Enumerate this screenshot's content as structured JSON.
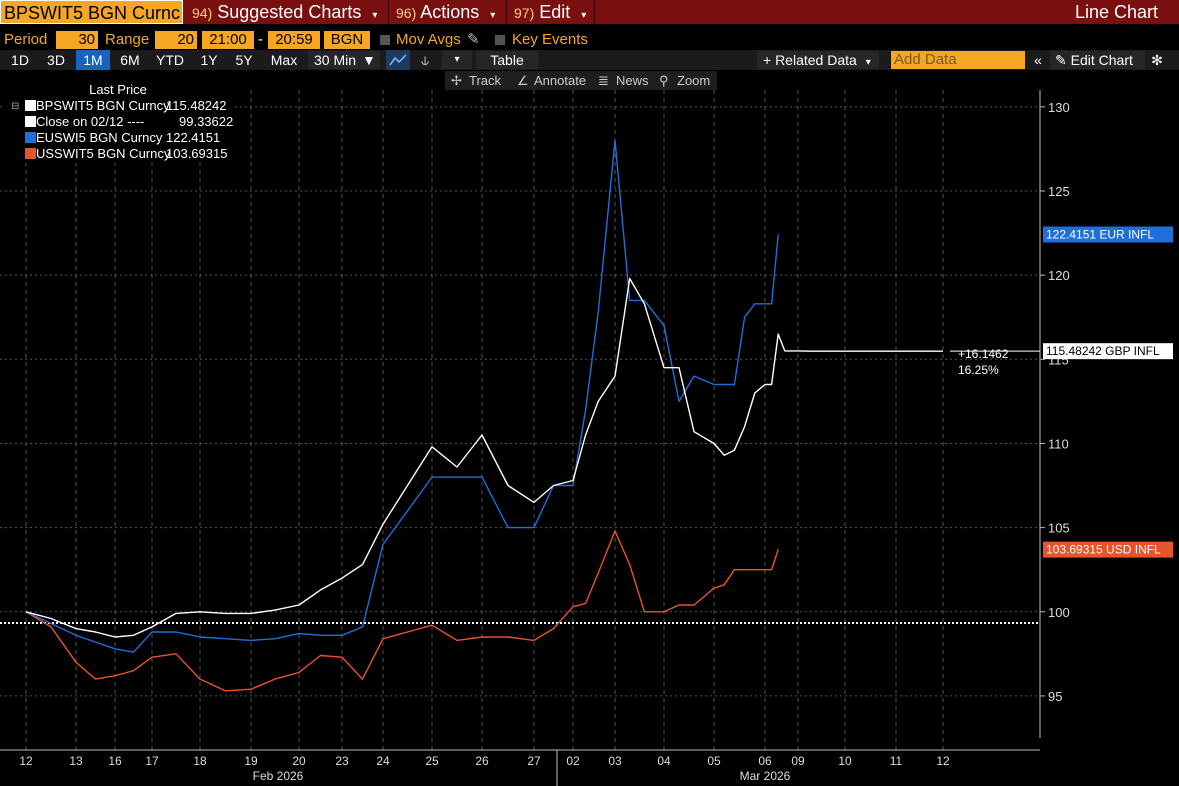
{
  "topbar": {
    "ticker": "BPSWIT5 BGN Curnc",
    "menus": [
      {
        "num": "94)",
        "label": "Suggested Charts"
      },
      {
        "num": "96)",
        "label": "Actions"
      },
      {
        "num": "97)",
        "label": "Edit"
      }
    ],
    "chart_type": "Line Chart"
  },
  "settings": {
    "period_label": "Period",
    "period_value": "30",
    "range_label": "Range",
    "range_value": "20",
    "time_start": "21:00",
    "dash": "-",
    "time_end": "20:59",
    "source": "BGN",
    "mov_avgs": "Mov Avgs",
    "key_events": "Key Events"
  },
  "toolbar": {
    "ranges": [
      "1D",
      "3D",
      "1M",
      "6M",
      "YTD",
      "1Y",
      "5Y",
      "Max"
    ],
    "selected_range": "1M",
    "interval": "30 Min",
    "table": "Table",
    "related_data": "+ Related Data",
    "add_data_placeholder": "Add Data",
    "edit_chart": "Edit Chart"
  },
  "tools": {
    "track": "Track",
    "annotate": "Annotate",
    "news": "News",
    "zoom": "Zoom"
  },
  "legend": {
    "header": "Last Price",
    "items": [
      {
        "name": "BPSWIT5 BGN Curncy",
        "value": "115.48242",
        "color": "#ffffff"
      },
      {
        "name": "Close on 02/12 ----",
        "value": "99.33622",
        "color": "#ffffff"
      },
      {
        "name": "EUSWI5 BGN Curncy",
        "value": "122.4151",
        "color": "#1e6fd9"
      },
      {
        "name": "USSWIT5 BGN Curncy",
        "value": "103.69315",
        "color": "#e8532a"
      }
    ]
  },
  "colors": {
    "gbp": "#ffffff",
    "eur": "#1e6fd9",
    "usd": "#e8532a",
    "accent": "#f5a623",
    "header_bg": "#7a0f0f"
  },
  "chart_data": {
    "type": "line",
    "ylim": [
      92.5,
      131
    ],
    "yticks": [
      95,
      100,
      105,
      110,
      115,
      120,
      125,
      130
    ],
    "x_day_labels": [
      "12",
      "13",
      "16",
      "17",
      "18",
      "19",
      "20",
      "23",
      "24",
      "25",
      "26",
      "27",
      "02",
      "03",
      "04",
      "05",
      "06",
      "09",
      "10",
      "11",
      "12"
    ],
    "x_month_labels": [
      "Feb 2026",
      "Mar 2026"
    ],
    "reference_line": {
      "label": "Close on 02/12",
      "value": 99.33622
    },
    "change_annotation": {
      "abs": "+16.1462",
      "pct": "16.25%"
    },
    "series": [
      {
        "name": "BPSWIT5 BGN Curncy",
        "tag": "115.48242 GBP INFL",
        "last": 115.48242,
        "x": [
          0,
          0.5,
          1,
          1.5,
          2,
          2.5,
          3,
          3.5,
          4,
          4.5,
          5,
          5.5,
          6,
          6.5,
          7,
          7.5,
          8,
          8.5,
          9,
          9.5,
          10,
          10.5,
          11,
          11.5,
          12,
          12.3,
          12.6,
          13,
          13.3,
          13.6,
          14,
          14.3,
          14.6,
          15,
          15.2,
          15.4,
          15.6,
          15.8,
          16,
          16.2,
          16.4,
          16.6,
          16.8,
          17,
          17.3,
          17.6,
          18,
          18.3,
          18.6,
          19,
          19.3,
          19.6,
          20
        ],
        "y": [
          100,
          99.6,
          99,
          98.8,
          98.5,
          98.6,
          99.1,
          99.9,
          100,
          99.9,
          99.9,
          100.1,
          100.4,
          101.3,
          102,
          102.8,
          105.2,
          107.5,
          109.8,
          108.6,
          110.5,
          107.5,
          106.5,
          107.5,
          107.8,
          110.5,
          112.5,
          114,
          119.8,
          118.3,
          114.5,
          114.5,
          110.7,
          110,
          109.3,
          109.6,
          111,
          113,
          113.5,
          113.5,
          116.5,
          115.5,
          115.5,
          115.5,
          115.48,
          115.48,
          115.48,
          115.48,
          115.48,
          115.48,
          115.48,
          115.48,
          115.48
        ]
      },
      {
        "name": "EUSWI5 BGN Curncy",
        "tag": "122.4151 EUR INFL",
        "last": 122.4151,
        "x": [
          0,
          0.5,
          1,
          1.5,
          2,
          2.5,
          3,
          3.5,
          4,
          4.5,
          5,
          5.5,
          6,
          6.5,
          7,
          7.5,
          8,
          8.5,
          9,
          9.5,
          10,
          10.5,
          11,
          11.5,
          12,
          12.3,
          12.6,
          13,
          13.3,
          13.6,
          14,
          14.3,
          14.6,
          15,
          15.2,
          15.4,
          15.6,
          15.8,
          16,
          16.2,
          16.4
        ],
        "y": [
          100,
          99.3,
          98.6,
          98.2,
          97.8,
          97.6,
          98.8,
          98.8,
          98.5,
          98.4,
          98.3,
          98.4,
          98.7,
          98.6,
          98.6,
          99.1,
          104,
          106,
          108,
          108,
          108,
          105,
          105,
          107.5,
          107.5,
          112,
          117.8,
          128,
          118.5,
          118.5,
          117,
          112.5,
          114,
          113.5,
          113.5,
          113.5,
          117.5,
          118.3,
          118.3,
          118.3,
          122.4
        ]
      },
      {
        "name": "USSWIT5 BGN Curncy",
        "tag": "103.69315 USD INFL",
        "last": 103.69315,
        "x": [
          0,
          0.5,
          1,
          1.5,
          2,
          2.5,
          3,
          3.5,
          4,
          4.5,
          5,
          5.5,
          6,
          6.5,
          7,
          7.5,
          8,
          8.5,
          9,
          9.5,
          10,
          10.5,
          11,
          11.5,
          12,
          12.3,
          12.6,
          13,
          13.3,
          13.6,
          14,
          14.3,
          14.6,
          15,
          15.2,
          15.4,
          15.6,
          15.8,
          16,
          16.2,
          16.4
        ],
        "y": [
          100,
          99.1,
          97,
          96,
          96.2,
          96.5,
          97.3,
          97.5,
          96,
          95.3,
          95.4,
          96,
          96.4,
          97.4,
          97.3,
          96,
          98.4,
          98.8,
          99.2,
          98.3,
          98.5,
          98.5,
          98.3,
          99,
          100.3,
          100.5,
          102.3,
          104.8,
          102.8,
          100,
          100,
          100.4,
          100.4,
          101.4,
          101.6,
          102.5,
          102.5,
          102.5,
          102.5,
          102.5,
          103.7
        ]
      }
    ]
  }
}
